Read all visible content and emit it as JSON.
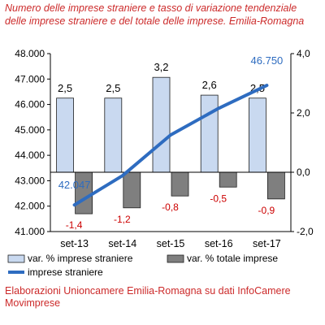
{
  "title": "Numero delle imprese straniere e tasso di variazione tendenziale delle imprese straniere e del totale delle imprese. Emilia-Romagna",
  "source": "Elaborazioni Unioncamere Emilia-Romagna su dati InfoCamere Movimprese",
  "chart_data": {
    "type": "bar",
    "categories": [
      "set-13",
      "set-14",
      "set-15",
      "set-16",
      "set-17"
    ],
    "series": [
      {
        "name": "var. % imprese straniere",
        "type": "bar",
        "axis": "right",
        "values": [
          2.5,
          2.5,
          3.2,
          2.6,
          2.5
        ],
        "labels": [
          "2,5",
          "2,5",
          "3,2",
          "2,6",
          "2,5"
        ],
        "color": "#c9d9f0"
      },
      {
        "name": "var. % totale imprese",
        "type": "bar",
        "axis": "right",
        "values": [
          -1.4,
          -1.2,
          -0.8,
          -0.5,
          -0.9
        ],
        "labels": [
          "-1,4",
          "-1,2",
          "-0,8",
          "-0,5",
          "-0,9"
        ],
        "color": "#7f7f7f"
      },
      {
        "name": "imprese straniere",
        "type": "line",
        "axis": "left",
        "values": [
          42047,
          43200,
          44800,
          45850,
          46750
        ],
        "labels": [
          "42.047",
          "",
          "",
          "",
          "46.750"
        ],
        "color": "#2e6cc0"
      }
    ],
    "ylim_left": [
      41000,
      48000
    ],
    "ylim_right": [
      -2.0,
      4.0
    ],
    "yticks_left": [
      "41.000",
      "42.000",
      "43.000",
      "44.000",
      "45.000",
      "46.000",
      "47.000",
      "48.000"
    ],
    "yticks_right": [
      "-2,0",
      "0,0",
      "2,0",
      "4,0"
    ],
    "grid": false,
    "legend_position": "bottom",
    "colors": {
      "text": "#cc2a2a",
      "positive_label": "#000000",
      "negative_label": "#cc0000",
      "line_label": "#2e6cc0",
      "axis": "#000000"
    }
  }
}
